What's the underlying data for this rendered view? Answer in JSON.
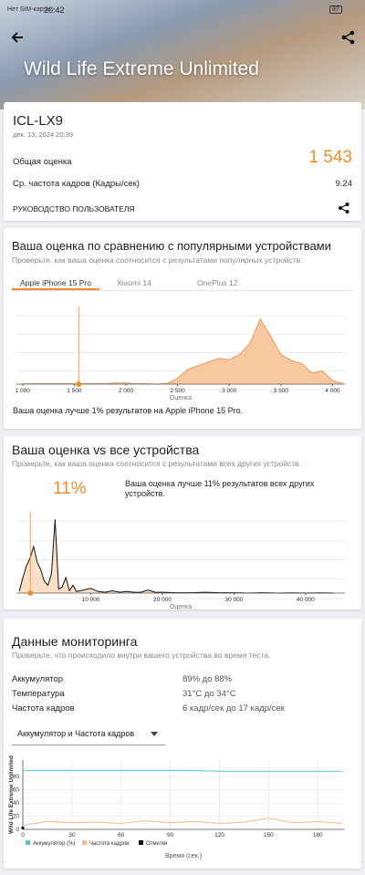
{
  "status_bar": {
    "carrier": "Нет SIM-карты",
    "time": "20:42",
    "battery": "87"
  },
  "header": {
    "title": "Wild Life Extreme Unlimited"
  },
  "result": {
    "device": "ICL-LX9",
    "date": "дек. 13, 2024 20:39",
    "score_label": "Общая оценка",
    "score": {
      "value": 1543,
      "label": "1 543"
    },
    "fps_label": "Ср. частота кадров (Кадры/сек)",
    "fps": 9.24,
    "guide": "РУКОВОДСТВО ПОЛЬЗОВАТЕЛЯ"
  },
  "popular": {
    "title": "Ваша оценка по сравнению с популярными устройствами",
    "subtitle": "Проверьте, как ваша оценка соотносится с результатами популярных устройств.",
    "tabs": [
      "Apple iPhone 15 Pro",
      "Xiaomi 14",
      "OnePlus 12"
    ],
    "active_tab": 0,
    "chart_data": {
      "type": "area",
      "color": "#f8c9a0",
      "line_color": "#e59a5e",
      "marker_color": "#f28c28",
      "xlabel": "Оценка",
      "x": [
        1000,
        1100,
        1200,
        1300,
        1400,
        1500,
        1600,
        1700,
        1800,
        1900,
        2000,
        2100,
        2200,
        2300,
        2400,
        2500,
        2600,
        2700,
        2800,
        2900,
        3000,
        3100,
        3200,
        3300,
        3400,
        3500,
        3600,
        3700,
        3800,
        3900,
        4000,
        4100
      ],
      "values": [
        0.5,
        0.5,
        0.5,
        0.5,
        0.5,
        0.5,
        0.5,
        0.5,
        0.5,
        1.5,
        1.5,
        0.5,
        0.5,
        0,
        1,
        8,
        20,
        25,
        30,
        35,
        33,
        40,
        55,
        88,
        65,
        40,
        32,
        28,
        15,
        18,
        5,
        1
      ],
      "xlim": [
        940,
        4120
      ],
      "xticks": [
        {
          "value": 1000,
          "label": "1 000"
        },
        {
          "value": 1500,
          "label": "1 500"
        },
        {
          "value": 2000,
          "label": "2 000"
        },
        {
          "value": 2500,
          "label": "2 500"
        },
        {
          "value": 3000,
          "label": "3 000"
        },
        {
          "value": 3500,
          "label": "3 500"
        },
        {
          "value": 4000,
          "label": "4 000"
        }
      ],
      "ylim": [
        0,
        100
      ]
    },
    "verdict": "Ваша оценка лучше 1% результатов на Apple iPhone 15 Pro."
  },
  "all_devices": {
    "title": "Ваша оценка vs все устройства",
    "subtitle": "Проверьте, как ваша оценка соотносится с результатами всех других устройств.",
    "percentile": {
      "value": 11,
      "label": "11%"
    },
    "verdict": "Ваша оценка лучше 11% результатов всех других устройств.",
    "chart_data": {
      "type": "line",
      "color": "#111111",
      "fill": "#f8c9a0",
      "marker_color": "#f28c28",
      "xlabel": "Оценка",
      "x": [
        0,
        500,
        1000,
        1500,
        2000,
        2500,
        3000,
        3500,
        4000,
        4500,
        5000,
        5500,
        6000,
        6500,
        7000,
        7500,
        8000,
        9000,
        10000,
        11000,
        12000,
        13000,
        14000,
        15000,
        16000,
        17000,
        18000,
        19000,
        20000,
        22000,
        24000,
        26000,
        28000,
        30000,
        32000,
        34000,
        36000,
        38000,
        40000,
        42000,
        44000
      ],
      "values": [
        2,
        20,
        35,
        45,
        60,
        40,
        30,
        15,
        10,
        25,
        95,
        5,
        8,
        20,
        3,
        10,
        2,
        4,
        6,
        2,
        1,
        3,
        1,
        2,
        1,
        1,
        4,
        1,
        1,
        0.5,
        0.5,
        1,
        0.5,
        0.5,
        0,
        0.5,
        0,
        0.3,
        0,
        0.3,
        0
      ],
      "xlim": [
        -400,
        45500
      ],
      "xticks": [
        {
          "value": 10000,
          "label": "10 000"
        },
        {
          "value": 20000,
          "label": "20 000"
        },
        {
          "value": 30000,
          "label": "30 000"
        },
        {
          "value": 40000,
          "label": "40 000"
        }
      ],
      "ylim": [
        0,
        100
      ]
    }
  },
  "monitoring": {
    "title": "Данные мониторинга",
    "subtitle": "Проверьте, что происходило внутри вашего устройства во время теста.",
    "rows": [
      [
        "Аккумулятор",
        "89% до 88%"
      ],
      [
        "Температура",
        "31°C до 34°C"
      ],
      [
        "Частота кадров",
        "6 кадр/сек до 17 кадр/сек"
      ]
    ],
    "dropdown": "Аккумулятор и Частота кадров",
    "chart_data": {
      "type": "line",
      "ylabel": "Wild Life Extreme Unlimited",
      "xlabel": "Время (сек.)",
      "x": [
        0,
        15,
        30,
        45,
        60,
        75,
        90,
        105,
        120,
        135,
        150,
        165,
        180,
        195
      ],
      "series": [
        {
          "name": "Аккумулятор (%)",
          "color": "#5bc0d0",
          "values": [
            89,
            89,
            89,
            89,
            89,
            89,
            89,
            89,
            88,
            88,
            88,
            88,
            88,
            88
          ]
        },
        {
          "name": "Частота кадров",
          "color": "#f5b98a",
          "values": [
            6,
            12,
            10,
            11,
            9,
            13,
            10,
            12,
            9,
            11,
            17,
            10,
            12,
            9
          ]
        },
        {
          "name": "Отметки",
          "color": "#111111",
          "values": [
            0,
            null,
            null,
            null,
            null,
            null,
            null,
            null,
            null,
            null,
            null,
            null,
            null,
            null
          ]
        }
      ],
      "xlim": [
        0,
        196
      ],
      "xticks": [
        0,
        30,
        60,
        90,
        120,
        150,
        180
      ],
      "ylim": [
        0,
        105
      ],
      "yticks": [
        0,
        20,
        40,
        60,
        80
      ]
    }
  }
}
